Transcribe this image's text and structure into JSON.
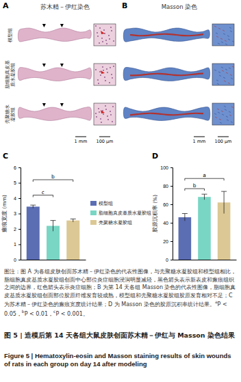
{
  "panels": [
    {
      "label": "A",
      "title": "苏木精－伊红染色",
      "row_labels": [
        "模型组",
        "脂细胞真皮基质水凝胶组",
        "壳聚糖水凝胶组"
      ],
      "scale_bars": [
        "1 mm",
        "100 μm"
      ]
    },
    {
      "label": "B",
      "title": "Masson 染色",
      "scale_bars": [
        "1 mm",
        "100 μm"
      ]
    }
  ],
  "legend_items": [
    {
      "name": "模型组",
      "color": "#5b6db3"
    },
    {
      "name": "脂细胞真皮基质水凝胶组",
      "color": "#79d6c4"
    },
    {
      "name": "壳聚糖水凝胶组",
      "color": "#dcc894"
    }
  ],
  "chart_data": [
    {
      "label": "C",
      "type": "bar",
      "y_label": "瘢痕宽度 (mm)",
      "categories": [
        null,
        null,
        null
      ],
      "values": [
        3.45,
        2.2,
        2.55
      ],
      "errors": [
        0.1,
        0.35,
        0.1
      ],
      "colors": [
        "#5b6db3",
        "#79d6c4",
        "#dcc894"
      ],
      "ylim": [
        0,
        6
      ],
      "yticks": [
        0,
        1,
        2,
        3,
        4,
        5,
        6
      ],
      "annotations": [
        {
          "text": "b",
          "from": 0,
          "to": 2,
          "y": 5.2
        },
        {
          "text": "c",
          "from": 0,
          "to": 1,
          "y": 4.2
        }
      ]
    },
    {
      "label": "D",
      "type": "bar",
      "y_label": "胶原沉积率 (%)",
      "categories": [
        null,
        null,
        null
      ],
      "values": [
        46,
        68,
        62
      ],
      "errors": [
        4,
        3,
        12
      ],
      "colors": [
        "#5b6db3",
        "#79d6c4",
        "#dcc894"
      ],
      "ylim": [
        0,
        100
      ],
      "yticks": [
        0,
        20,
        40,
        60,
        80,
        100
      ],
      "annotations": [
        {
          "text": "a",
          "from": 0,
          "to": 2,
          "y": 88
        },
        {
          "text": "b",
          "from": 0,
          "to": 1,
          "y": 77
        }
      ]
    }
  ],
  "caption": [
    {
      "text": "图注：图 A 为各组皮肤创面苏木精－伊红染色的代表性图像，与壳聚糖水凝胶组和模型组相比，脂细胞真皮基质水凝胶组创面中心部位炎症细胞浸润明显减轻，黑色箭头表示新表皮和瘢痕组织之间的边界，红色箭头表示炎症细胞；B 为第 14 天各组 Masson 染色的代表性图像，脂细胞真皮基质水凝胶组创面部位胶原纤维发育较成熟，模型组和壳聚糖水凝胶组胶原发育相对不足；C 为苏木精－伊红染色的瘢痕宽度统计结果；D 为 Masson 染色的胶原沉积率统计结果。"
    },
    {
      "sup": "a"
    },
    {
      "text": "P < 0.05，"
    },
    {
      "sup": "b"
    },
    {
      "text": "P < 0.01，"
    },
    {
      "sup": "c"
    },
    {
      "text": "P < 0.001。"
    }
  ],
  "figure_title": "图 5 | 造模后第 14 天各组大鼠皮肤创面苏木精－伊红与 Masson 染色结果",
  "figure_title_en": "Figure 5 | Hematoxylin-eosin and Masson staining results of skin wounds of rats in each group on day 14 after modeling"
}
